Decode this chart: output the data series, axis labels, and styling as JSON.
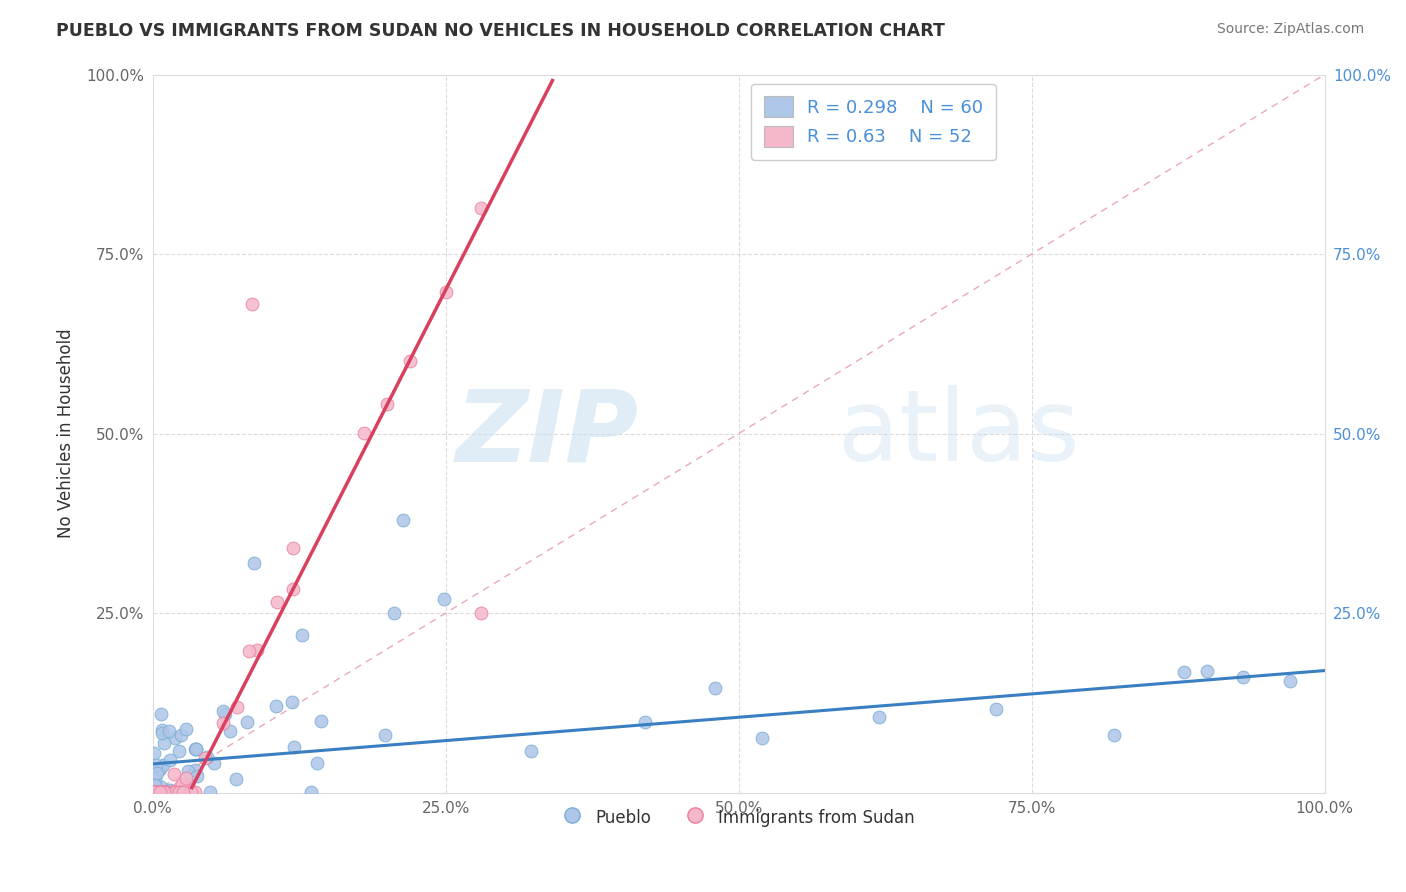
{
  "title": "PUEBLO VS IMMIGRANTS FROM SUDAN NO VEHICLES IN HOUSEHOLD CORRELATION CHART",
  "source_text": "Source: ZipAtlas.com",
  "ylabel": "No Vehicles in Household",
  "xlim": [
    0.0,
    1.0
  ],
  "ylim": [
    0.0,
    1.0
  ],
  "xtick_vals": [
    0.0,
    0.25,
    0.5,
    0.75,
    1.0
  ],
  "xtick_labels": [
    "0.0%",
    "25.0%",
    "50.0%",
    "75.0%",
    "100.0%"
  ],
  "ytick_vals": [
    0.0,
    0.25,
    0.5,
    0.75,
    1.0
  ],
  "ytick_labels": [
    "",
    "25.0%",
    "50.0%",
    "75.0%",
    "100.0%"
  ],
  "right_ytick_labels": [
    "",
    "25.0%",
    "50.0%",
    "75.0%",
    "100.0%"
  ],
  "pueblo_color": "#aec6e8",
  "pueblo_edge": "#7aadd4",
  "sudan_color": "#f5b8cb",
  "sudan_edge": "#e87fa0",
  "blue_line_color": "#3a7fc1",
  "pink_line_color": "#d94060",
  "dashed_line_color": "#e8a0b0",
  "R_pueblo": 0.298,
  "N_pueblo": 60,
  "R_sudan": 0.63,
  "N_sudan": 52,
  "legend_label_pueblo": "Pueblo",
  "legend_label_sudan": "Immigrants from Sudan",
  "watermark_zip": "ZIP",
  "watermark_atlas": "atlas",
  "background_color": "#ffffff",
  "grid_color": "#cccccc",
  "title_color": "#333333",
  "source_color": "#777777",
  "tick_color": "#666666",
  "right_tick_color": "#4a90d9",
  "blue_line_slope": 0.13,
  "blue_line_intercept": 0.04,
  "pink_line_slope": 3.2,
  "pink_line_intercept": -0.1,
  "dashed_slope": 1.0,
  "dashed_intercept": 0.0
}
